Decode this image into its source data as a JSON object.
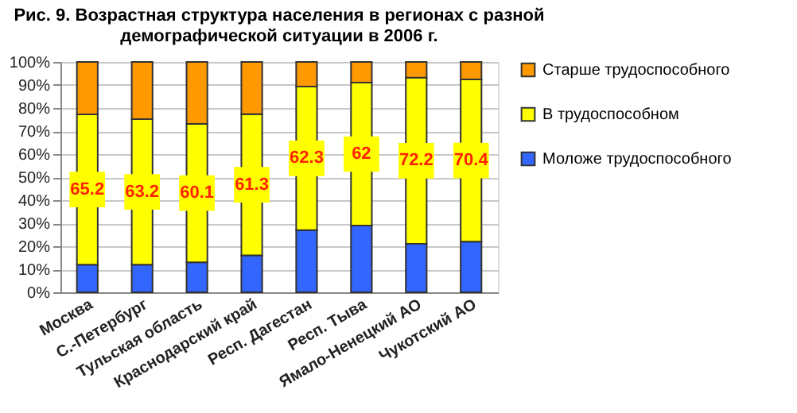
{
  "chart_data": {
    "type": "bar",
    "stacked": true,
    "title": "Рис. 9. Возрастная структура населения в регионах с разной\nдемографической ситуации в 2006 г.",
    "categories": [
      "Москва",
      "С.-Петербург",
      "Тульская область",
      "Краснодарский край",
      "Респ. Дагестан",
      "Респ. Тыва",
      "Ямало-Ненецкий АО",
      "Чукотский АО"
    ],
    "series": [
      {
        "name": "Моложе трудоспособного",
        "color": "#3366ff",
        "values": [
          12,
          12,
          13,
          16,
          27,
          29,
          21,
          22
        ]
      },
      {
        "name": "В трудоспособном",
        "color": "#ffff00",
        "values": [
          65.2,
          63.2,
          60.1,
          61.3,
          62.3,
          62,
          72.2,
          70.4
        ],
        "value_labels": [
          "65.2",
          "63.2",
          "60.1",
          "61.3",
          "62.3",
          "62",
          "72.2",
          "70.4"
        ]
      },
      {
        "name": "Старше трудоспособного",
        "color": "#ff9900",
        "values": [
          22.8,
          24.8,
          26.9,
          22.7,
          10.7,
          9,
          6.8,
          7.6
        ]
      }
    ],
    "ylim": [
      0,
      100
    ],
    "yticks": [
      {
        "value": 0,
        "label": "0%"
      },
      {
        "value": 10,
        "label": "10%"
      },
      {
        "value": 20,
        "label": "20%"
      },
      {
        "value": 30,
        "label": "30%"
      },
      {
        "value": 40,
        "label": "40%"
      },
      {
        "value": 50,
        "label": "50%"
      },
      {
        "value": 60,
        "label": "60%"
      },
      {
        "value": 70,
        "label": "70%"
      },
      {
        "value": 80,
        "label": "80%"
      },
      {
        "value": 90,
        "label": "90%"
      },
      {
        "value": 100,
        "label": "100%"
      }
    ],
    "grid": "y",
    "legend": "right"
  }
}
